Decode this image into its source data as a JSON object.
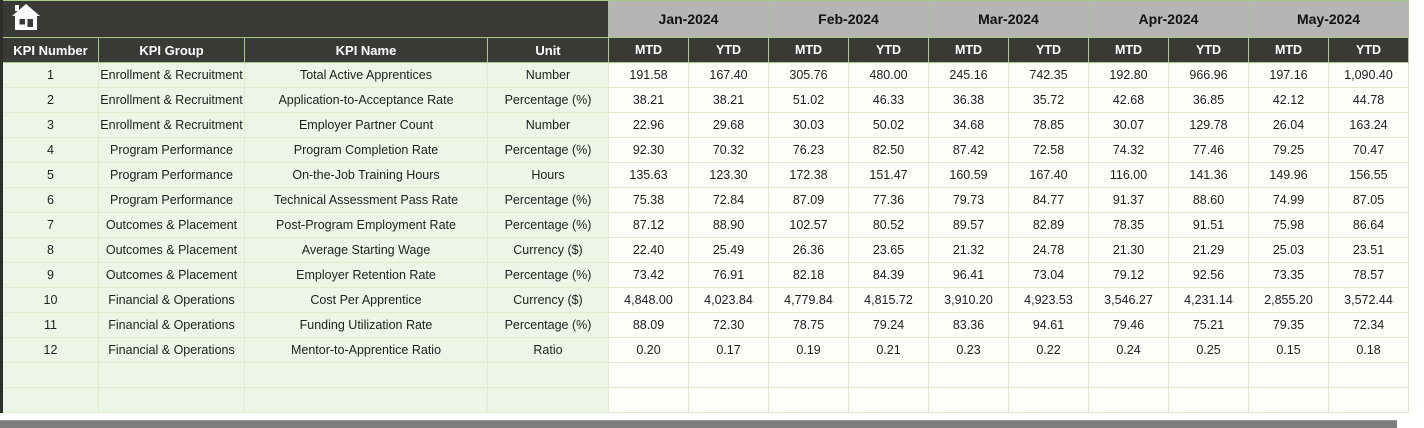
{
  "table": {
    "corner_icon": "home-icon",
    "months": [
      "Jan-2024",
      "Feb-2024",
      "Mar-2024",
      "Apr-2024",
      "May-2024"
    ],
    "sub_headers": [
      "MTD",
      "YTD"
    ],
    "left_headers": [
      "KPI Number",
      "KPI Group",
      "KPI Name",
      "Unit"
    ],
    "rows": [
      {
        "kpi_number": "1",
        "kpi_group": "Enrollment & Recruitment",
        "kpi_name": "Total Active Apprentices",
        "unit": "Number",
        "values": [
          "191.58",
          "167.40",
          "305.76",
          "480.00",
          "245.16",
          "742.35",
          "192.80",
          "966.96",
          "197.16",
          "1,090.40"
        ]
      },
      {
        "kpi_number": "2",
        "kpi_group": "Enrollment & Recruitment",
        "kpi_name": "Application-to-Acceptance Rate",
        "unit": "Percentage (%)",
        "values": [
          "38.21",
          "38.21",
          "51.02",
          "46.33",
          "36.38",
          "35.72",
          "42.68",
          "36.85",
          "42.12",
          "44.78"
        ]
      },
      {
        "kpi_number": "3",
        "kpi_group": "Enrollment & Recruitment",
        "kpi_name": "Employer Partner Count",
        "unit": "Number",
        "values": [
          "22.96",
          "29.68",
          "30.03",
          "50.02",
          "34.68",
          "78.85",
          "30.07",
          "129.78",
          "26.04",
          "163.24"
        ]
      },
      {
        "kpi_number": "4",
        "kpi_group": "Program Performance",
        "kpi_name": "Program Completion Rate",
        "unit": "Percentage (%)",
        "values": [
          "92.30",
          "70.32",
          "76.23",
          "82.50",
          "87.42",
          "72.58",
          "74.32",
          "77.46",
          "79.25",
          "70.47"
        ]
      },
      {
        "kpi_number": "5",
        "kpi_group": "Program Performance",
        "kpi_name": "On-the-Job Training Hours",
        "unit": "Hours",
        "values": [
          "135.63",
          "123.30",
          "172.38",
          "151.47",
          "160.59",
          "167.40",
          "116.00",
          "141.36",
          "149.96",
          "156.55"
        ]
      },
      {
        "kpi_number": "6",
        "kpi_group": "Program Performance",
        "kpi_name": "Technical Assessment Pass Rate",
        "unit": "Percentage (%)",
        "values": [
          "75.38",
          "72.84",
          "87.09",
          "77.36",
          "79.73",
          "84.77",
          "91.37",
          "88.60",
          "74.99",
          "87.05"
        ]
      },
      {
        "kpi_number": "7",
        "kpi_group": "Outcomes & Placement",
        "kpi_name": "Post-Program Employment Rate",
        "unit": "Percentage (%)",
        "values": [
          "87.12",
          "88.90",
          "102.57",
          "80.52",
          "89.57",
          "82.89",
          "78.35",
          "91.51",
          "75.98",
          "86.64"
        ]
      },
      {
        "kpi_number": "8",
        "kpi_group": "Outcomes & Placement",
        "kpi_name": "Average Starting Wage",
        "unit": "Currency ($)",
        "values": [
          "22.40",
          "25.49",
          "26.36",
          "23.65",
          "21.32",
          "24.78",
          "21.30",
          "21.29",
          "25.03",
          "23.51"
        ]
      },
      {
        "kpi_number": "9",
        "kpi_group": "Outcomes & Placement",
        "kpi_name": "Employer Retention Rate",
        "unit": "Percentage (%)",
        "values": [
          "73.42",
          "76.91",
          "82.18",
          "84.39",
          "96.41",
          "73.04",
          "79.12",
          "92.56",
          "73.35",
          "78.57"
        ]
      },
      {
        "kpi_number": "10",
        "kpi_group": "Financial & Operations",
        "kpi_name": "Cost Per Apprentice",
        "unit": "Currency ($)",
        "values": [
          "4,848.00",
          "4,023.84",
          "4,779.84",
          "4,815.72",
          "3,910.20",
          "4,923.53",
          "3,546.27",
          "4,231.14",
          "2,855.20",
          "3,572.44"
        ]
      },
      {
        "kpi_number": "11",
        "kpi_group": "Financial & Operations",
        "kpi_name": "Funding Utilization Rate",
        "unit": "Percentage (%)",
        "values": [
          "88.09",
          "72.30",
          "78.75",
          "79.24",
          "83.36",
          "94.61",
          "79.46",
          "75.21",
          "79.35",
          "72.34"
        ]
      },
      {
        "kpi_number": "12",
        "kpi_group": "Financial & Operations",
        "kpi_name": "Mentor-to-Apprentice Ratio",
        "unit": "Ratio",
        "values": [
          "0.20",
          "0.17",
          "0.19",
          "0.21",
          "0.23",
          "0.22",
          "0.24",
          "0.25",
          "0.15",
          "0.18"
        ]
      }
    ],
    "empty_row_count": 2
  },
  "colors": {
    "header_dark": "#393936",
    "month_gray": "#b5b5b3",
    "grid_green_border": "#a9c989",
    "left_column_bg": "#edf5e6",
    "value_cell_bg": "#fdfdfa",
    "scrollbar_gray": "#7d7d7d"
  }
}
